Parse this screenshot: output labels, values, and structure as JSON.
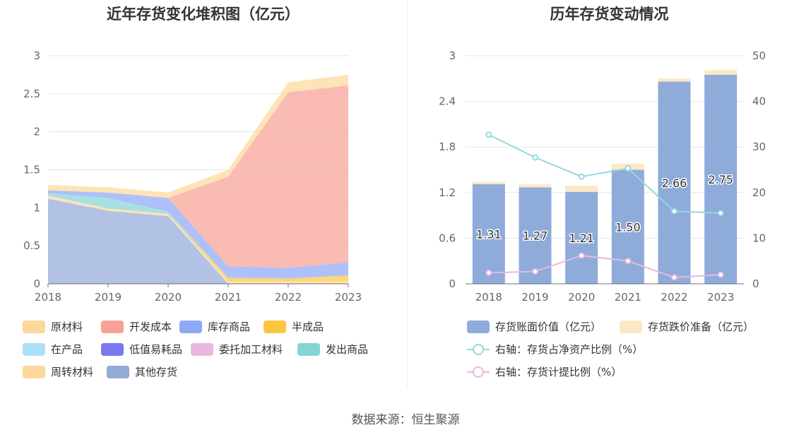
{
  "left_chart": {
    "title": "近年存货变化堆积图（亿元）",
    "legend": [
      {
        "name": "原材料",
        "color": "#fdd89a"
      },
      {
        "name": "开发成本",
        "color": "#f8a196"
      },
      {
        "name": "库存商品",
        "color": "#8ea8f8"
      },
      {
        "name": "半成品",
        "color": "#fcc73f"
      },
      {
        "name": "在产品",
        "color": "#ace0f9"
      },
      {
        "name": "低值易耗品",
        "color": "#7978ee"
      },
      {
        "name": "委托加工材料",
        "color": "#e8b8de"
      },
      {
        "name": "发出商品",
        "color": "#86d4d5"
      },
      {
        "name": "周转材料",
        "color": "#fdd89a"
      },
      {
        "name": "其他存货",
        "color": "#93abd9"
      }
    ]
  },
  "right_chart": {
    "title": "历年存货变动情况",
    "legend": [
      {
        "name": "存货账面价值（亿元）",
        "color": "#8fabda",
        "kind": "bar"
      },
      {
        "name": "存货跌价准备（亿元）",
        "color": "#fce8c5",
        "kind": "bar"
      },
      {
        "name": "右轴：存货占净资产比例（%）",
        "color": "#93d9dc",
        "kind": "line"
      },
      {
        "name": "右轴：存货计提比例（%）",
        "color": "#e6b9df",
        "kind": "line"
      }
    ]
  },
  "footer": {
    "source": "数据来源：恒生聚源"
  },
  "chart_data": [
    {
      "type": "area",
      "stacked": true,
      "title": "近年存货变化堆积图（亿元）",
      "x": [
        "2018",
        "2019",
        "2020",
        "2021",
        "2022",
        "2023"
      ],
      "ylim": [
        0,
        3
      ],
      "yticks": [
        "0",
        "0.5",
        "1",
        "1.5",
        "2",
        "2.5",
        "3"
      ],
      "grid": true,
      "legend_position": "bottom",
      "series": [
        {
          "name": "其他存货",
          "color": "#93abd9",
          "values": [
            1.12,
            0.96,
            0.89,
            0.0,
            0.0,
            0.0
          ]
        },
        {
          "name": "周转材料",
          "color": "#fdd89a",
          "values": [
            0.04,
            0.03,
            0.03,
            0.03,
            0.03,
            0.03
          ]
        },
        {
          "name": "发出商品",
          "color": "#86d4d5",
          "values": [
            0.03,
            0.14,
            0.03,
            0.0,
            0.0,
            0.0
          ]
        },
        {
          "name": "委托加工材料",
          "color": "#e8b8de",
          "values": [
            0.0,
            0.0,
            0.0,
            0.0,
            0.0,
            0.0
          ]
        },
        {
          "name": "低值易耗品",
          "color": "#7978ee",
          "values": [
            0.0,
            0.0,
            0.0,
            0.0,
            0.0,
            0.0
          ]
        },
        {
          "name": "在产品",
          "color": "#ace0f9",
          "values": [
            0.0,
            0.0,
            0.0,
            0.0,
            0.0,
            0.0
          ]
        },
        {
          "name": "半成品",
          "color": "#fcc73f",
          "values": [
            0.0,
            0.0,
            0.0,
            0.05,
            0.04,
            0.08
          ]
        },
        {
          "name": "库存商品",
          "color": "#8ea8f8",
          "values": [
            0.04,
            0.07,
            0.18,
            0.15,
            0.14,
            0.17
          ]
        },
        {
          "name": "开发成本",
          "color": "#f8a196",
          "values": [
            0.0,
            0.0,
            0.0,
            1.18,
            2.31,
            2.33
          ]
        },
        {
          "name": "原材料",
          "color": "#fdd89a",
          "values": [
            0.07,
            0.07,
            0.07,
            0.09,
            0.13,
            0.14
          ]
        }
      ]
    },
    {
      "type": "bar",
      "stacked": true,
      "title": "历年存货变动情况",
      "categories": [
        "2018",
        "2019",
        "2020",
        "2021",
        "2022",
        "2023"
      ],
      "ylim": [
        0,
        3
      ],
      "yticks": [
        "0",
        "0.6",
        "1.2",
        "1.8",
        "2.4",
        "3"
      ],
      "y2lim": [
        0,
        50
      ],
      "y2ticks": [
        "0",
        "10",
        "20",
        "30",
        "40",
        "50"
      ],
      "grid": true,
      "legend_position": "bottom",
      "series": [
        {
          "name": "存货账面价值（亿元）",
          "axis": "left",
          "kind": "bar",
          "color": "#8fabda",
          "values": [
            1.31,
            1.27,
            1.21,
            1.5,
            2.66,
            2.75
          ],
          "labels": [
            "1.31",
            "1.27",
            "1.21",
            "1.50",
            "2.66",
            "2.75"
          ]
        },
        {
          "name": "存货跌价准备（亿元）",
          "axis": "left",
          "kind": "bar",
          "color": "#fce8c5",
          "values": [
            0.03,
            0.04,
            0.08,
            0.08,
            0.04,
            0.06
          ]
        },
        {
          "name": "右轴：存货占净资产比例（%）",
          "axis": "right",
          "kind": "line",
          "color": "#93d9dc",
          "values": [
            32.7,
            27.7,
            23.5,
            25.3,
            15.9,
            15.5
          ]
        },
        {
          "name": "右轴：存货计提比例（%）",
          "axis": "right",
          "kind": "line",
          "color": "#e6b9df",
          "values": [
            2.4,
            2.7,
            6.2,
            5.0,
            1.4,
            2.0
          ]
        }
      ]
    }
  ]
}
